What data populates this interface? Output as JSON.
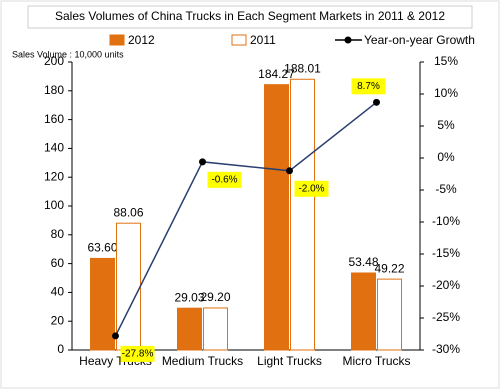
{
  "chart_data": {
    "type": "bar",
    "title": "Sales Volumes of China Trucks in Each Segment Markets in 2011 & 2012",
    "subtitle": "Sales Volume : 10,000 units",
    "categories": [
      "Heavy Trucks",
      "Medium Trucks",
      "Light Trucks",
      "Micro Trucks"
    ],
    "series": [
      {
        "name": "2012",
        "color": "#e07010",
        "values": [
          63.6,
          29.03,
          184.27,
          53.48
        ],
        "value_labels": [
          "63.60",
          "29.03",
          "184.27",
          "53.48"
        ]
      },
      {
        "name": "2011",
        "color": "#ffffff",
        "values": [
          88.06,
          29.2,
          188.01,
          49.22
        ],
        "value_labels": [
          "88.06",
          "29.20",
          "188.01",
          "49.22"
        ]
      },
      {
        "name": "Year-on-year Growth",
        "color": "#2a3f6e",
        "type": "line",
        "axis": "y2",
        "values": [
          -27.8,
          -0.6,
          -2.0,
          8.7
        ],
        "value_labels": [
          "-27.8%",
          "-0.6%",
          "-2.0%",
          "8.7%"
        ]
      }
    ],
    "ylim": [
      0,
      200
    ],
    "yticks": [
      0,
      20,
      40,
      60,
      80,
      100,
      120,
      140,
      160,
      180,
      200
    ],
    "y2lim": [
      -30,
      15
    ],
    "y2ticks": [
      {
        "value": 15,
        "label": "15%"
      },
      {
        "value": 10,
        "label": "10%"
      },
      {
        "value": 5,
        "label": "5%"
      },
      {
        "value": 0,
        "label": "0%"
      },
      {
        "value": -5,
        "label": "-5%"
      },
      {
        "value": -10,
        "label": "-10%"
      },
      {
        "value": -15,
        "label": "-15%"
      },
      {
        "value": -20,
        "label": "-20%"
      },
      {
        "value": -25,
        "label": "-25%"
      },
      {
        "value": -30,
        "label": "-30%"
      }
    ],
    "grid": false
  }
}
